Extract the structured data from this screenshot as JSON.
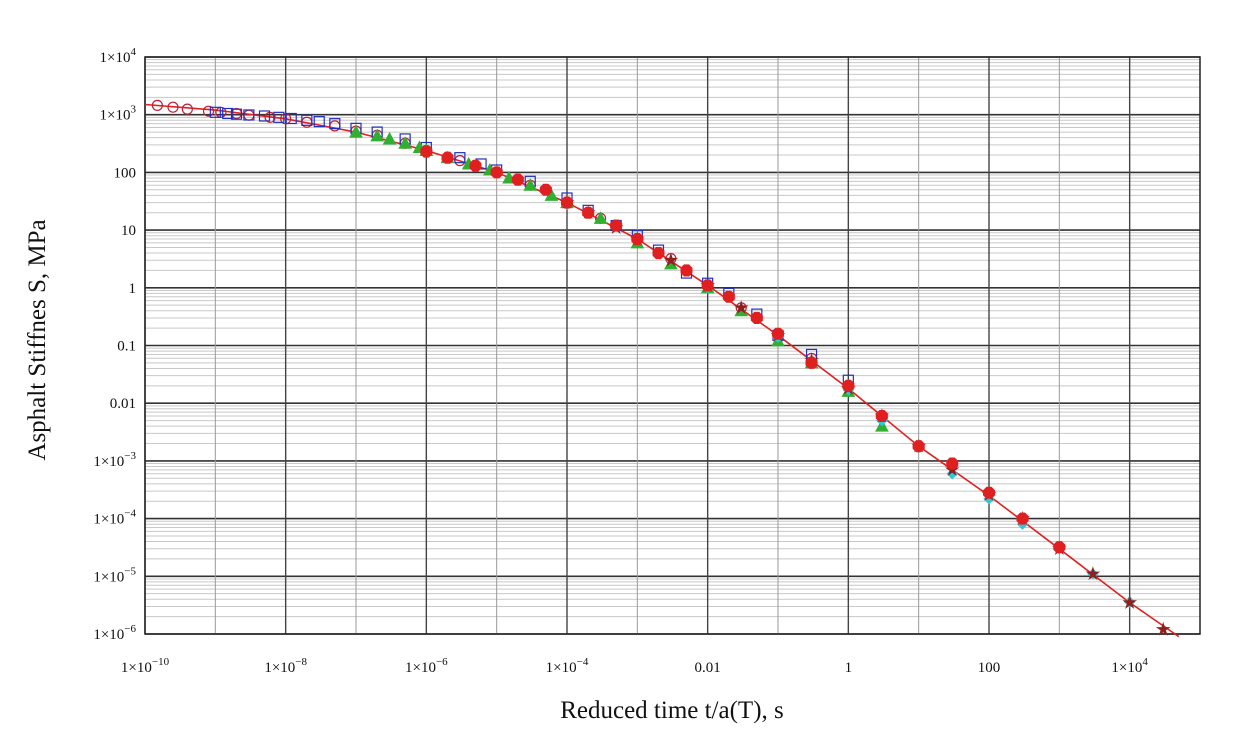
{
  "chart_data": {
    "type": "scatter",
    "title": "",
    "xlabel": "Reduced time t/a(T), s",
    "ylabel": "Asphalt Stiffnes S, MPa",
    "x_scale": "log",
    "y_scale": "log",
    "xlim": [
      1e-10,
      100000.0
    ],
    "ylim": [
      1e-06,
      10000.0
    ],
    "grid": true,
    "x_ticks": [
      {
        "value": 1e-10,
        "base": "1×10",
        "exp": "−10"
      },
      {
        "value": 1e-08,
        "base": "1×10",
        "exp": "−8"
      },
      {
        "value": 1e-06,
        "base": "1×10",
        "exp": "−6"
      },
      {
        "value": 0.0001,
        "base": "1×10",
        "exp": "−4"
      },
      {
        "value": 0.01,
        "base": "0.01",
        "exp": ""
      },
      {
        "value": 1,
        "base": "1",
        "exp": ""
      },
      {
        "value": 100,
        "base": "100",
        "exp": ""
      },
      {
        "value": 10000.0,
        "base": "1×10",
        "exp": "4"
      }
    ],
    "y_ticks": [
      {
        "value": 10000.0,
        "base": "1×10",
        "exp": "4"
      },
      {
        "value": 1000.0,
        "base": "1×10",
        "exp": "3"
      },
      {
        "value": 100,
        "base": "100",
        "exp": ""
      },
      {
        "value": 10,
        "base": "10",
        "exp": ""
      },
      {
        "value": 1,
        "base": "1",
        "exp": ""
      },
      {
        "value": 0.1,
        "base": "0.1",
        "exp": ""
      },
      {
        "value": 0.01,
        "base": "0.01",
        "exp": ""
      },
      {
        "value": 0.001,
        "base": "1×10",
        "exp": "−3"
      },
      {
        "value": 0.0001,
        "base": "1×10",
        "exp": "−4"
      },
      {
        "value": 1e-05,
        "base": "1×10",
        "exp": "−5"
      },
      {
        "value": 1e-06,
        "base": "1×10",
        "exp": "−6"
      }
    ],
    "master_curve": {
      "color": "#e02020",
      "x": [
        1e-10,
        1e-09,
        1e-08,
        1e-07,
        1e-06,
        1e-05,
        0.0001,
        0.001,
        0.01,
        0.1,
        1,
        10,
        100,
        1000,
        10000.0,
        50000.0
      ],
      "y": [
        1500,
        1200,
        850,
        500,
        240,
        100,
        30,
        7,
        1.1,
        0.15,
        0.018,
        0.0018,
        0.00025,
        3e-05,
        3.5e-06,
        9e-07
      ]
    },
    "series": [
      {
        "marker": "circle",
        "color": "#c0203a",
        "x": [
          1.5e-10,
          2.5e-10,
          4e-10,
          8e-10,
          1.2e-09,
          2e-09,
          3e-09,
          6e-09,
          1e-08,
          2e-08,
          5e-08,
          1e-07,
          2e-07,
          5e-07,
          1e-06,
          3e-06,
          1e-05,
          3e-05,
          0.0001,
          0.0003,
          0.001,
          0.003,
          0.01,
          0.03,
          0.1,
          0.3,
          1
        ],
        "y": [
          1450,
          1350,
          1250,
          1150,
          1100,
          1050,
          980,
          900,
          850,
          740,
          640,
          520,
          440,
          320,
          240,
          160,
          100,
          60,
          30,
          16,
          7,
          3.2,
          1.1,
          0.45,
          0.16,
          0.06,
          0.02
        ]
      },
      {
        "marker": "square",
        "color": "#2030c0",
        "x": [
          1e-09,
          1.5e-09,
          2e-09,
          3e-09,
          5e-09,
          8e-09,
          1.2e-08,
          2e-08,
          3e-08,
          5e-08,
          1e-07,
          2e-07,
          5e-07,
          1e-06,
          3e-06,
          6e-06,
          1e-05,
          3e-05,
          0.0001,
          0.0002,
          0.0005,
          0.001,
          0.002,
          0.005,
          0.01,
          0.02,
          0.05,
          0.1,
          0.3,
          1
        ],
        "y": [
          1100,
          1050,
          1020,
          990,
          950,
          900,
          860,
          800,
          760,
          700,
          580,
          500,
          380,
          270,
          180,
          140,
          110,
          70,
          36,
          22,
          12,
          8,
          4.5,
          1.8,
          1.2,
          0.8,
          0.35,
          0.15,
          0.07,
          0.025
        ]
      },
      {
        "marker": "triangle",
        "color": "#30b030",
        "x": [
          1e-07,
          2e-07,
          3e-07,
          5e-07,
          8e-07,
          1e-06,
          2e-06,
          4e-06,
          8e-06,
          1.5e-05,
          3e-05,
          6e-05,
          0.0001,
          0.0003,
          0.001,
          0.003,
          0.01,
          0.03,
          0.1,
          0.3,
          1,
          3
        ],
        "y": [
          500,
          430,
          380,
          320,
          270,
          240,
          180,
          140,
          110,
          80,
          60,
          40,
          30,
          16,
          6,
          2.6,
          1.0,
          0.4,
          0.12,
          0.05,
          0.016,
          0.004
        ]
      },
      {
        "marker": "diamond",
        "color": "#30c8d8",
        "x": [
          0.0001,
          0.001,
          0.01,
          0.1,
          1,
          3,
          10,
          30,
          100,
          300,
          1000,
          3000,
          10000.0
        ],
        "y": [
          28,
          7,
          1.0,
          0.14,
          0.017,
          0.005,
          0.0017,
          0.0006,
          0.00022,
          8e-05,
          3e-05,
          1.1e-05,
          3.6e-06
        ]
      },
      {
        "marker": "star",
        "color": "#902020",
        "x": [
          0.0001,
          0.0002,
          0.0005,
          0.001,
          0.003,
          0.01,
          0.03,
          0.1,
          0.3,
          1,
          3,
          10,
          30,
          100,
          300,
          1000,
          3000,
          10000.0,
          30000.0
        ],
        "y": [
          30,
          20,
          11,
          7,
          3,
          1.1,
          0.45,
          0.15,
          0.055,
          0.018,
          0.006,
          0.0018,
          0.0007,
          0.00026,
          0.0001,
          3e-05,
          1.1e-05,
          3.5e-06,
          1.2e-06
        ]
      },
      {
        "marker": "octagon",
        "color": "#e02020",
        "x": [
          1e-06,
          2e-06,
          5e-06,
          1e-05,
          2e-05,
          5e-05,
          0.0001,
          0.0002,
          0.0005,
          0.001,
          0.002,
          0.005,
          0.01,
          0.02,
          0.05,
          0.1,
          0.3,
          1,
          3,
          10,
          30,
          100,
          300,
          1000
        ],
        "y": [
          230,
          180,
          130,
          100,
          75,
          50,
          30,
          20,
          12,
          7,
          4,
          2,
          1.1,
          0.7,
          0.3,
          0.16,
          0.05,
          0.02,
          0.006,
          0.0018,
          0.0009,
          0.00028,
          0.0001,
          3.2e-05
        ]
      }
    ]
  }
}
